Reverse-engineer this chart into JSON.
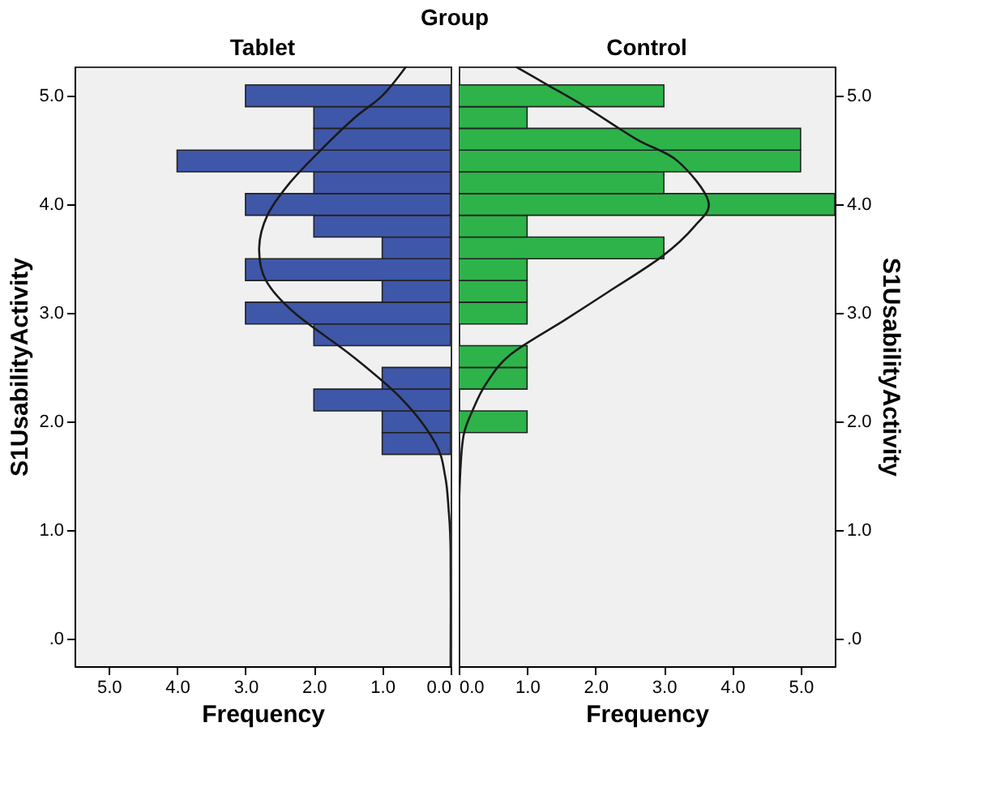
{
  "chart_data": [
    {
      "type": "histogram",
      "orientation": "horizontal",
      "title": "Tablet",
      "xlabel": "Frequency",
      "ylabel": "S1UsabilityActivity",
      "annotations": [
        "Group"
      ],
      "bins": [
        1.7,
        1.9,
        2.1,
        2.3,
        2.5,
        2.7,
        2.9,
        3.1,
        3.3,
        3.5,
        3.7,
        3.9,
        4.1,
        4.3,
        4.5,
        4.7,
        4.9,
        5.1
      ],
      "values": [
        1,
        1,
        2,
        1,
        0,
        2,
        3,
        1,
        3,
        1,
        2,
        3,
        2,
        4,
        2,
        2,
        3
      ],
      "color": "#3f57a8",
      "series": [
        {
          "type": "line",
          "color": "#1a1a1a",
          "x": [
            -0.25,
            0.8,
            1.2,
            1.5,
            1.8,
            2.2,
            2.6,
            3.0,
            3.3,
            3.6,
            3.9,
            4.2,
            4.5,
            4.8,
            5.0,
            5.27
          ],
          "values": [
            0,
            0,
            0.03,
            0.08,
            0.22,
            0.7,
            1.43,
            2.28,
            2.7,
            2.8,
            2.68,
            2.35,
            1.9,
            1.4,
            1.0,
            0.65
          ]
        }
      ],
      "xlim": [
        5.5,
        0
      ],
      "xticks": [
        {
          "value": 5,
          "label": "5.0"
        },
        {
          "value": 4,
          "label": "4.0"
        },
        {
          "value": 3,
          "label": "3.0"
        },
        {
          "value": 2,
          "label": "2.0"
        },
        {
          "value": 1,
          "label": "1.0"
        },
        {
          "value": 0,
          "label": "0.0"
        }
      ],
      "ylim": [
        -0.25,
        5.27
      ],
      "yticks": [
        {
          "value": 0,
          "label": ".0"
        },
        {
          "value": 1,
          "label": "1.0"
        },
        {
          "value": 2,
          "label": "2.0"
        },
        {
          "value": 3,
          "label": "3.0"
        },
        {
          "value": 4,
          "label": "4.0"
        },
        {
          "value": 5,
          "label": "5.0"
        }
      ],
      "grid": false
    },
    {
      "type": "histogram",
      "orientation": "horizontal",
      "title": "Control",
      "xlabel": "Frequency",
      "ylabel": "S1UsabilityActivity",
      "bins": [
        1.7,
        1.9,
        2.1,
        2.3,
        2.5,
        2.7,
        2.9,
        3.1,
        3.3,
        3.5,
        3.7,
        3.9,
        4.1,
        4.3,
        4.5,
        4.7,
        4.9,
        5.1
      ],
      "values": [
        0,
        1,
        0,
        1,
        1,
        0,
        1,
        1,
        1,
        3,
        1,
        5.5,
        3,
        5,
        5,
        1,
        3
      ],
      "color": "#2db34a",
      "series": [
        {
          "type": "line",
          "color": "#1a1a1a",
          "x": [
            -0.25,
            1.0,
            1.5,
            1.87,
            2.1,
            2.35,
            2.62,
            2.94,
            3.2,
            3.52,
            3.8,
            4.03,
            4.4,
            4.6,
            4.9,
            5.1,
            5.27
          ],
          "values": [
            0,
            0,
            0.02,
            0.07,
            0.2,
            0.4,
            0.76,
            1.56,
            2.2,
            2.97,
            3.45,
            3.65,
            3.2,
            2.6,
            1.85,
            1.3,
            0.83
          ]
        }
      ],
      "xlim": [
        0,
        5.5
      ],
      "xticks": [
        {
          "value": 0,
          "label": "0.0"
        },
        {
          "value": 1,
          "label": "1.0"
        },
        {
          "value": 2,
          "label": "2.0"
        },
        {
          "value": 3,
          "label": "3.0"
        },
        {
          "value": 4,
          "label": "4.0"
        },
        {
          "value": 5,
          "label": "5.0"
        }
      ],
      "ylim": [
        -0.25,
        5.27
      ],
      "yticks": [
        {
          "value": 0,
          "label": ".0"
        },
        {
          "value": 1,
          "label": "1.0"
        },
        {
          "value": 2,
          "label": "2.0"
        },
        {
          "value": 3,
          "label": "3.0"
        },
        {
          "value": 4,
          "label": "4.0"
        },
        {
          "value": 5,
          "label": "5.0"
        }
      ],
      "grid": false
    }
  ]
}
